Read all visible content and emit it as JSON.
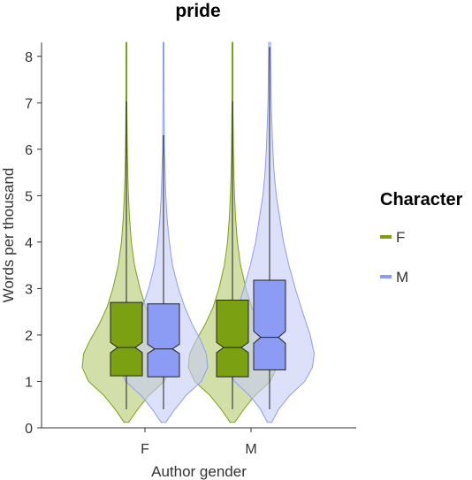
{
  "chart_data": {
    "type": "violin",
    "title": "pride",
    "xlabel": "Author gender",
    "ylabel": "Words per thousand",
    "categories": [
      "F",
      "M"
    ],
    "ylim": [
      0,
      8.3
    ],
    "yticks": [
      0,
      1,
      2,
      3,
      4,
      5,
      6,
      7,
      8
    ],
    "grid": false,
    "legend": {
      "title": "Character",
      "placement": "right",
      "entries": [
        {
          "label": "F",
          "color": "#7ba012"
        },
        {
          "label": "M",
          "color": "#8c9cf4"
        }
      ]
    },
    "series": [
      {
        "name": "F",
        "fill": "#b5c96e",
        "stroke": "#7ba012",
        "box_fill": "#7ba012",
        "groups": [
          {
            "category": "F",
            "q1": 1.12,
            "median": 1.73,
            "q3": 2.7,
            "whisker_low": 0.4,
            "whisker_high": 7.03,
            "notch_low": 1.62,
            "notch_high": 1.84,
            "violin_max": 8.3,
            "density": [
              [
                0.12,
                0.05
              ],
              [
                0.4,
                0.25
              ],
              [
                0.7,
                0.5
              ],
              [
                1.0,
                0.84
              ],
              [
                1.3,
                0.98
              ],
              [
                1.6,
                0.95
              ],
              [
                1.9,
                0.8
              ],
              [
                2.2,
                0.62
              ],
              [
                2.6,
                0.43
              ],
              [
                3.0,
                0.3
              ],
              [
                3.5,
                0.18
              ],
              [
                4.0,
                0.11
              ],
              [
                4.5,
                0.07
              ],
              [
                5.0,
                0.045
              ],
              [
                5.5,
                0.03
              ],
              [
                6.0,
                0.02
              ],
              [
                7.0,
                0.01
              ],
              [
                8.3,
                0.01
              ]
            ]
          },
          {
            "category": "M",
            "q1": 1.1,
            "median": 1.73,
            "q3": 2.75,
            "whisker_low": 0.4,
            "whisker_high": 7.03,
            "notch_low": 1.62,
            "notch_high": 1.84,
            "violin_max": 8.3,
            "density": [
              [
                0.12,
                0.05
              ],
              [
                0.4,
                0.25
              ],
              [
                0.7,
                0.5
              ],
              [
                1.0,
                0.84
              ],
              [
                1.3,
                0.98
              ],
              [
                1.6,
                0.95
              ],
              [
                1.9,
                0.8
              ],
              [
                2.2,
                0.62
              ],
              [
                2.6,
                0.43
              ],
              [
                3.0,
                0.3
              ],
              [
                3.5,
                0.18
              ],
              [
                4.0,
                0.11
              ],
              [
                4.5,
                0.07
              ],
              [
                5.0,
                0.045
              ],
              [
                5.5,
                0.03
              ],
              [
                6.0,
                0.02
              ],
              [
                7.0,
                0.01
              ],
              [
                8.3,
                0.01
              ]
            ]
          }
        ]
      },
      {
        "name": "M",
        "fill": "#c6ccf5",
        "stroke": "#8c9cf4",
        "box_fill": "#8c9cf4",
        "groups": [
          {
            "category": "F",
            "q1": 1.1,
            "median": 1.7,
            "q3": 2.67,
            "whisker_low": 0.4,
            "whisker_high": 6.3,
            "notch_low": 1.6,
            "notch_high": 1.8,
            "violin_max": 8.3,
            "density": [
              [
                0.12,
                0.05
              ],
              [
                0.4,
                0.25
              ],
              [
                0.7,
                0.5
              ],
              [
                1.0,
                0.84
              ],
              [
                1.3,
                0.98
              ],
              [
                1.6,
                0.95
              ],
              [
                1.9,
                0.82
              ],
              [
                2.2,
                0.65
              ],
              [
                2.6,
                0.47
              ],
              [
                3.0,
                0.33
              ],
              [
                3.5,
                0.2
              ],
              [
                4.0,
                0.13
              ],
              [
                4.5,
                0.08
              ],
              [
                5.0,
                0.05
              ],
              [
                5.5,
                0.035
              ],
              [
                6.0,
                0.02
              ],
              [
                7.0,
                0.012
              ],
              [
                8.3,
                0.01
              ]
            ]
          },
          {
            "category": "M",
            "q1": 1.25,
            "median": 1.95,
            "q3": 3.18,
            "whisker_low": 0.4,
            "whisker_high": 8.2,
            "notch_low": 1.82,
            "notch_high": 2.08,
            "violin_max": 8.3,
            "density": [
              [
                0.12,
                0.05
              ],
              [
                0.4,
                0.2
              ],
              [
                0.7,
                0.45
              ],
              [
                1.0,
                0.78
              ],
              [
                1.3,
                0.95
              ],
              [
                1.6,
                0.99
              ],
              [
                2.0,
                0.9
              ],
              [
                2.5,
                0.73
              ],
              [
                3.0,
                0.57
              ],
              [
                3.5,
                0.43
              ],
              [
                4.0,
                0.31
              ],
              [
                4.5,
                0.23
              ],
              [
                5.0,
                0.15
              ],
              [
                5.5,
                0.1
              ],
              [
                6.0,
                0.07
              ],
              [
                7.0,
                0.035
              ],
              [
                8.3,
                0.02
              ]
            ]
          }
        ]
      }
    ]
  }
}
